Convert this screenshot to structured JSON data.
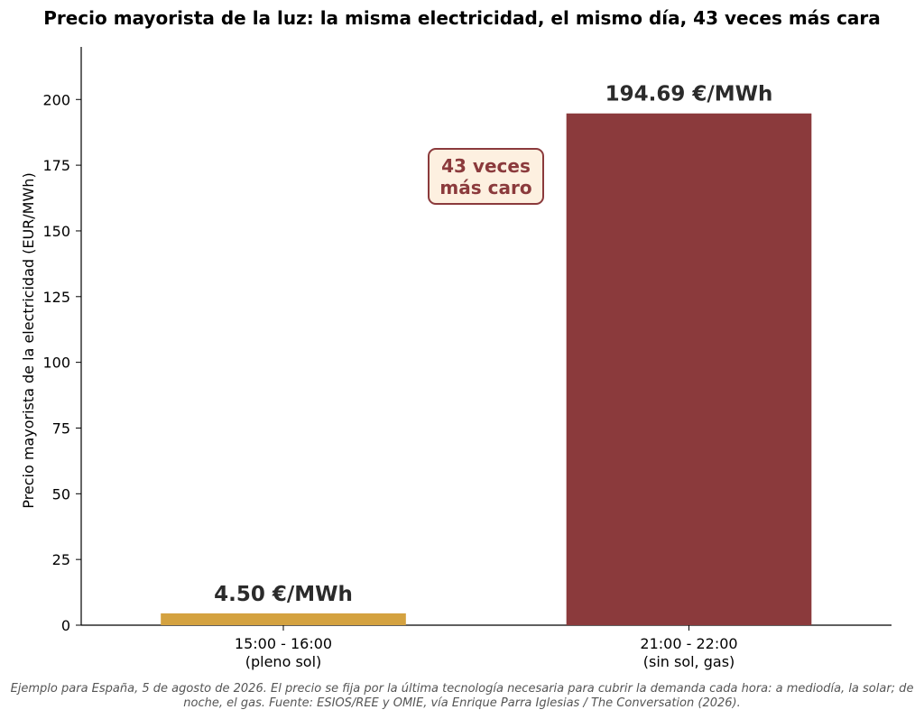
{
  "chart_data": {
    "type": "bar",
    "title": "Precio mayorista de la luz: la misma electricidad, el mismo día, 43 veces más cara",
    "ylabel": "Precio mayorista de la electricidad (EUR/MWh)",
    "xlabel": "",
    "ylim": [
      0,
      220
    ],
    "yticks": [
      0,
      25,
      50,
      75,
      100,
      125,
      150,
      175,
      200
    ],
    "categories": [
      [
        "15:00 - 16:00",
        "(pleno sol)"
      ],
      [
        "21:00 - 22:00",
        "(sin sol, gas)"
      ]
    ],
    "values": [
      4.5,
      194.69
    ],
    "colors": [
      "#D4A240",
      "#8B3A3C"
    ],
    "data_labels": [
      "4.50 €/MWh",
      "194.69 €/MWh"
    ],
    "grid": false,
    "annotation": {
      "lines": [
        "43 veces",
        "más caro"
      ],
      "text_color": "#8B3A3C",
      "box_fill": "#FDF0E0",
      "box_edge": "#8B3A3C"
    },
    "footnote": [
      "Ejemplo para España, 5 de agosto de 2026. El precio se fija por la última tecnología necesaria para cubrir la demanda cada hora: a mediodía, la solar; de",
      "noche, el gas. Fuente: ESIOS/REE y OMIE, vía Enrique Parra Iglesias / The Conversation (2026)."
    ]
  }
}
